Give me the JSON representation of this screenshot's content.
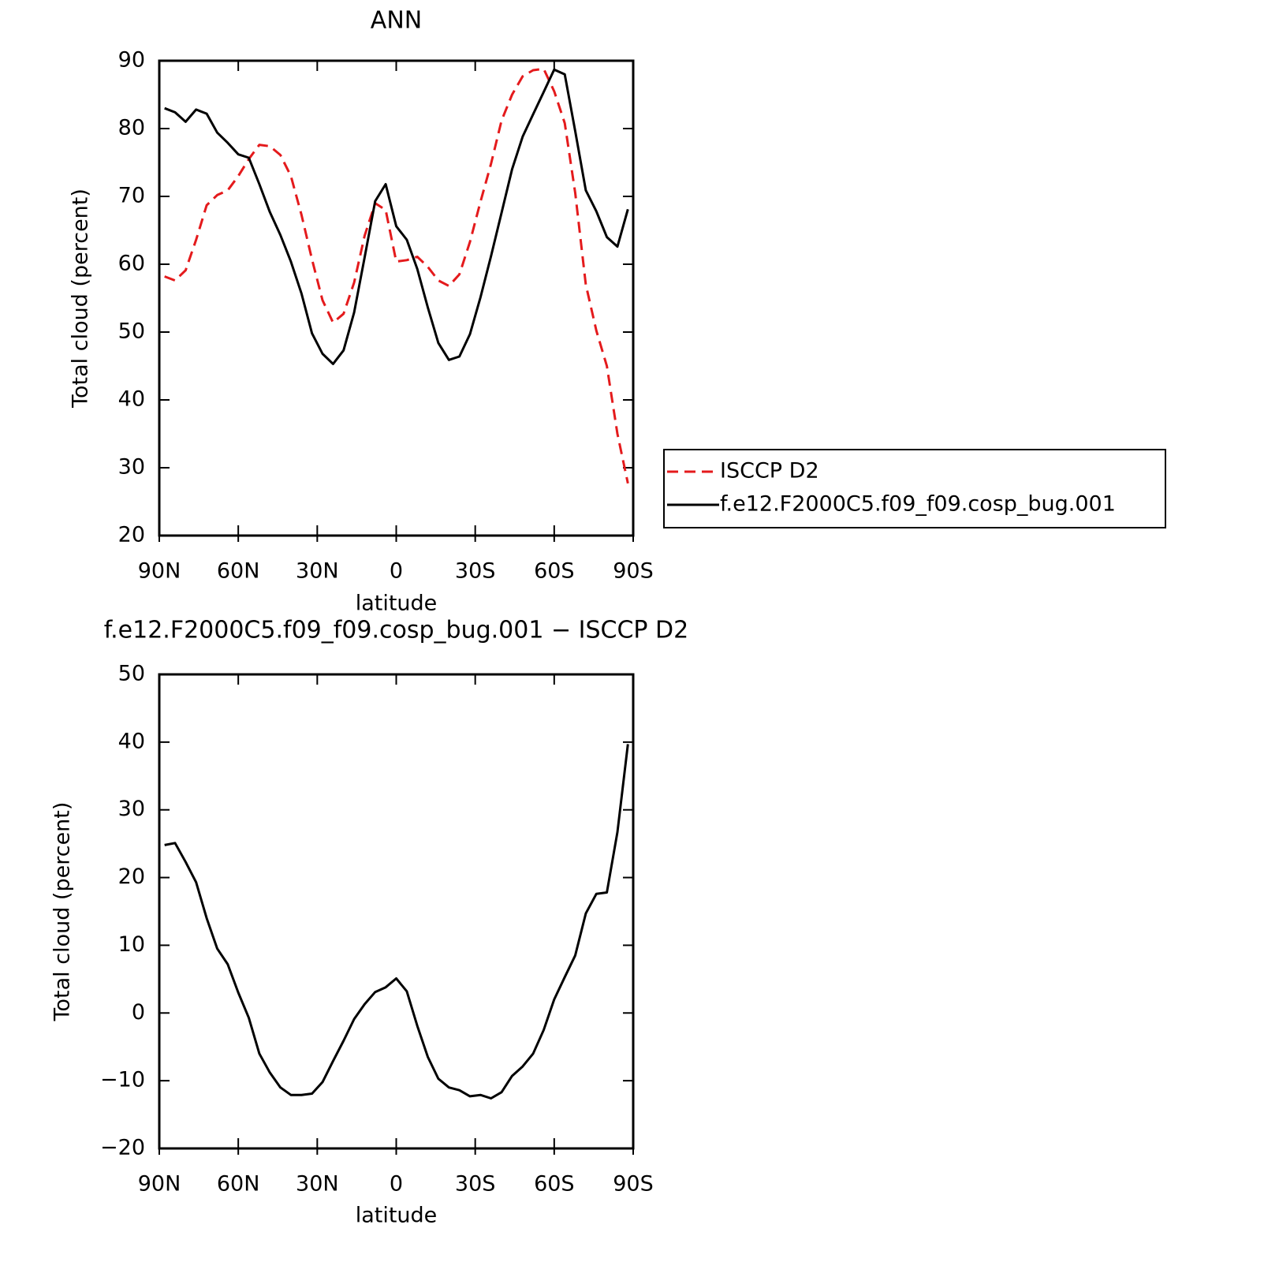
{
  "chart_data": [
    {
      "type": "line",
      "title": "ANN",
      "xlabel": "latitude",
      "ylabel": "Total cloud (percent)",
      "x": [
        88,
        84,
        80,
        76,
        72,
        68,
        64,
        60,
        56,
        52,
        48,
        44,
        40,
        36,
        32,
        28,
        24,
        20,
        16,
        12,
        8,
        4,
        0,
        -4,
        -8,
        -12,
        -16,
        -20,
        -24,
        -28,
        -32,
        -36,
        -40,
        -44,
        -48,
        -52,
        -56,
        -60,
        -64,
        -68,
        -72,
        -76,
        -80,
        -84,
        -88
      ],
      "series": [
        {
          "name": "ISCCP D2",
          "color": "#e41a1c",
          "dashed": true,
          "values": [
            58.2,
            57.6,
            59.1,
            63.6,
            68.7,
            70.2,
            70.9,
            73.0,
            75.5,
            77.6,
            77.4,
            76.1,
            73.0,
            67.3,
            60.7,
            54.7,
            51.4,
            52.7,
            57.3,
            64.2,
            69.0,
            68.0,
            60.4,
            60.6,
            61.1,
            59.6,
            57.6,
            56.8,
            58.5,
            63.3,
            69.2,
            74.8,
            81.2,
            85.0,
            87.7,
            88.6,
            88.8,
            85.5,
            80.8,
            70.5,
            57.0,
            50.2,
            45.0,
            35.0,
            27.7
          ]
        },
        {
          "name": "f.e12.F2000C5.f09_f09.cosp_bug.001",
          "color": "#000000",
          "dashed": false,
          "values": [
            83.0,
            82.4,
            81.0,
            82.8,
            82.2,
            79.4,
            77.9,
            76.2,
            75.7,
            71.8,
            67.7,
            64.3,
            60.4,
            55.7,
            49.8,
            46.8,
            45.3,
            47.3,
            52.9,
            61.0,
            69.3,
            71.8,
            65.6,
            63.6,
            59.3,
            53.6,
            48.4,
            45.9,
            46.4,
            49.7,
            55.1,
            61.2,
            67.6,
            74.0,
            78.8,
            82.1,
            85.4,
            88.7,
            88.0,
            79.6,
            70.9,
            67.8,
            64.0,
            62.6,
            68.1
          ]
        }
      ],
      "xlim": [
        90,
        -90
      ],
      "xticks": [
        {
          "value": 90,
          "label": "90N"
        },
        {
          "value": 60,
          "label": "60N"
        },
        {
          "value": 30,
          "label": "30N"
        },
        0,
        {
          "value": -30,
          "label": "30S"
        },
        {
          "value": -60,
          "label": "60S"
        },
        {
          "value": -90,
          "label": "90S"
        }
      ],
      "ylim": [
        20,
        90
      ],
      "yticks": [
        20,
        30,
        40,
        50,
        60,
        70,
        80,
        90
      ],
      "legend": "right"
    },
    {
      "type": "line",
      "title": "f.e12.F2000C5.f09_f09.cosp_bug.001 − ISCCP D2",
      "xlabel": "latitude",
      "ylabel": "Total cloud (percent)",
      "x": [
        88,
        84,
        80,
        76,
        72,
        68,
        64,
        60,
        56,
        52,
        48,
        44,
        40,
        36,
        32,
        28,
        24,
        20,
        16,
        12,
        8,
        4,
        0,
        -4,
        -8,
        -12,
        -16,
        -20,
        -24,
        -28,
        -32,
        -36,
        -40,
        -44,
        -48,
        -52,
        -56,
        -60,
        -64,
        -68,
        -72,
        -76,
        -80,
        -84,
        -88
      ],
      "series": [
        {
          "color": "#000000",
          "dashed": false,
          "values": [
            24.8,
            25.1,
            22.3,
            19.3,
            14.0,
            9.5,
            7.2,
            3.0,
            -0.7,
            -6.0,
            -8.8,
            -11.0,
            -12.1,
            -12.1,
            -11.9,
            -10.2,
            -7.1,
            -4.1,
            -0.9,
            1.3,
            3.1,
            3.8,
            5.1,
            3.2,
            -1.9,
            -6.5,
            -9.7,
            -11.0,
            -11.4,
            -12.3,
            -12.1,
            -12.6,
            -11.7,
            -9.3,
            -7.9,
            -6.0,
            -2.5,
            2.0,
            5.3,
            8.5,
            14.7,
            17.6,
            17.8,
            26.7,
            39.7
          ]
        }
      ],
      "xlim": [
        90,
        -90
      ],
      "xticks": [
        {
          "value": 90,
          "label": "90N"
        },
        {
          "value": 60,
          "label": "60N"
        },
        {
          "value": 30,
          "label": "30N"
        },
        0,
        {
          "value": -30,
          "label": "30S"
        },
        {
          "value": -60,
          "label": "60S"
        },
        {
          "value": -90,
          "label": "90S"
        }
      ],
      "ylim": [
        -20,
        50
      ],
      "yticks": [
        {
          "value": -20,
          "label": "−20"
        },
        {
          "value": -10,
          "label": "−10"
        },
        0,
        10,
        20,
        30,
        40,
        50
      ]
    }
  ]
}
